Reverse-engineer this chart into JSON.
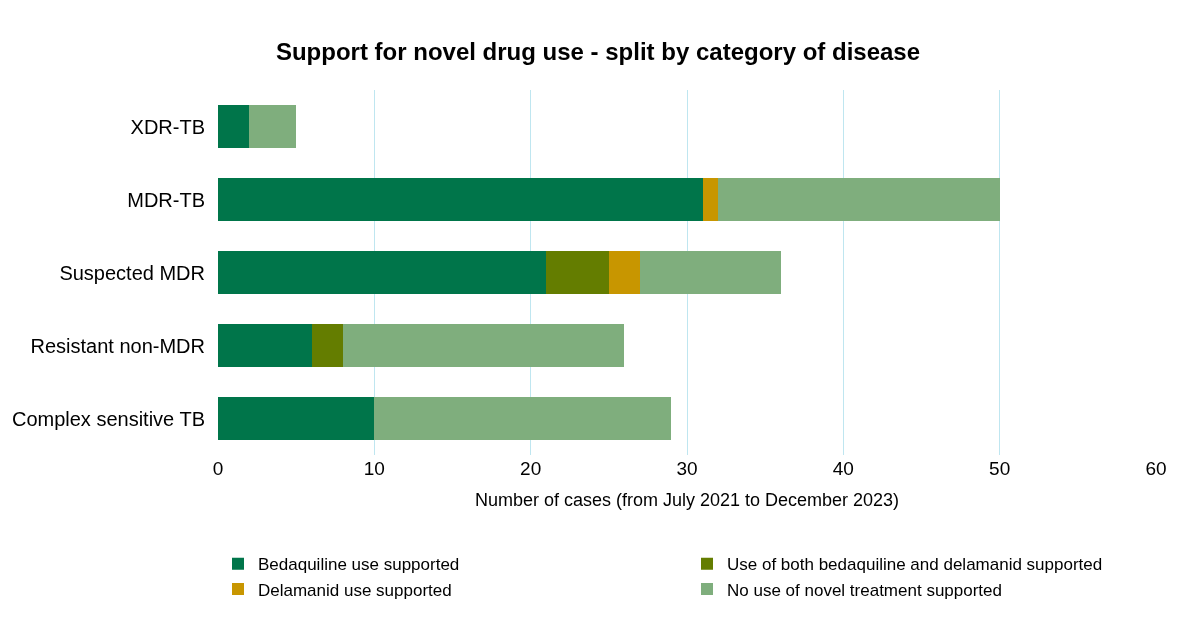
{
  "chart_data": {
    "type": "bar",
    "orientation": "horizontal",
    "stacked": true,
    "title": "Support for novel drug use - split by category of disease",
    "xlabel": "Number of cases (from July 2021 to December 2023)",
    "categories": [
      "XDR-TB",
      "MDR-TB",
      "Suspected MDR",
      "Resistant non-MDR",
      "Complex sensitive TB"
    ],
    "series": [
      {
        "name": "Bedaquiline use supported",
        "color": "#00754a",
        "values": [
          2,
          31,
          21,
          6,
          10
        ]
      },
      {
        "name": "Use of both bedaquiline and delamanid supported",
        "color": "#647d00",
        "values": [
          0,
          0,
          4,
          2,
          0
        ]
      },
      {
        "name": "Delamanid use supported",
        "color": "#c89600",
        "values": [
          0,
          1,
          2,
          0,
          0
        ]
      },
      {
        "name": "No use of novel treatment supported",
        "color": "#7fae7d",
        "values": [
          3,
          18,
          9,
          18,
          19
        ]
      }
    ],
    "xlim": [
      0,
      60
    ],
    "xticks": [
      0,
      10,
      20,
      30,
      40,
      50,
      60
    ],
    "grid": "x",
    "legend": "bottom"
  }
}
